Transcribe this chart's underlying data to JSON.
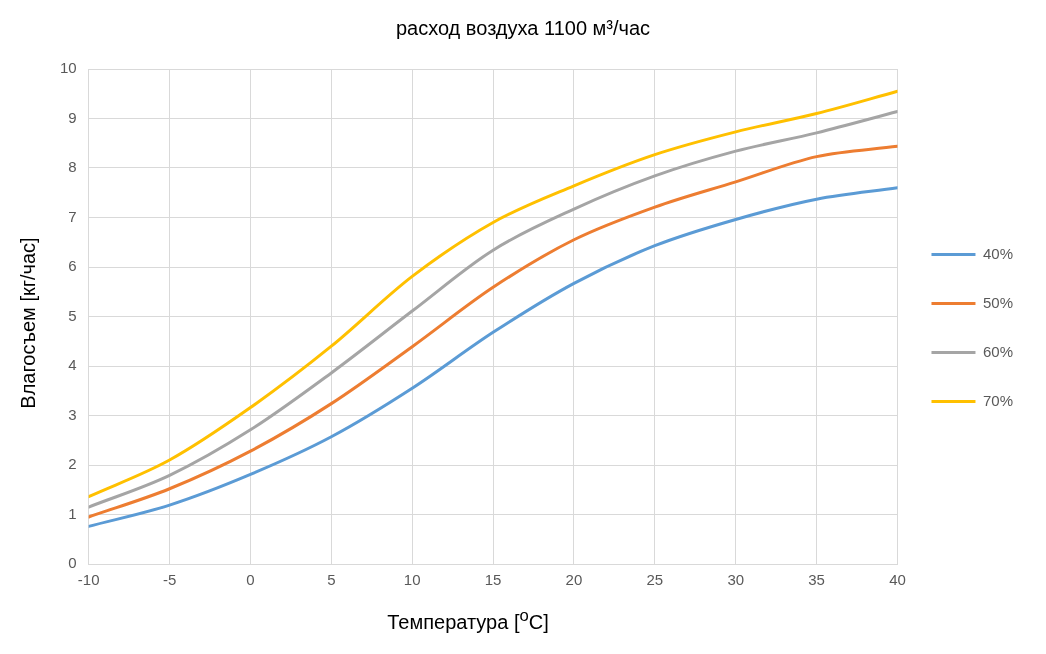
{
  "chart_data": {
    "type": "line",
    "title": "расход воздуха 1100 м³/час",
    "xlabel": "Температура [$^{o}$C]",
    "ylabel": "Влагосъем [кг/час]",
    "x": [
      -10,
      -5,
      0,
      5,
      10,
      15,
      20,
      25,
      30,
      35,
      40
    ],
    "series": [
      {
        "name": "40%",
        "color": "#5b9bd5",
        "values": [
          0.76,
          1.19,
          1.81,
          2.57,
          3.55,
          4.68,
          5.67,
          6.43,
          6.96,
          7.37,
          7.6
        ]
      },
      {
        "name": "50%",
        "color": "#ed7d31",
        "values": [
          0.95,
          1.52,
          2.28,
          3.24,
          4.39,
          5.59,
          6.55,
          7.21,
          7.72,
          8.23,
          8.44
        ]
      },
      {
        "name": "60%",
        "color": "#a5a5a5",
        "values": [
          1.15,
          1.79,
          2.71,
          3.86,
          5.11,
          6.34,
          7.17,
          7.84,
          8.34,
          8.71,
          9.14
        ]
      },
      {
        "name": "70%",
        "color": "#ffc000",
        "values": [
          1.36,
          2.1,
          3.16,
          4.4,
          5.81,
          6.9,
          7.64,
          8.27,
          8.73,
          9.1,
          9.55
        ]
      }
    ],
    "xlim": [
      -10,
      40
    ],
    "xticks": [
      -10,
      -5,
      0,
      5,
      10,
      15,
      20,
      25,
      30,
      35,
      40
    ],
    "ylim": [
      0,
      10
    ],
    "yticks": [
      0,
      1,
      2,
      3,
      4,
      5,
      6,
      7,
      8,
      9,
      10
    ],
    "grid": true,
    "legend": "right",
    "marker": "none",
    "line_style": "solid"
  }
}
